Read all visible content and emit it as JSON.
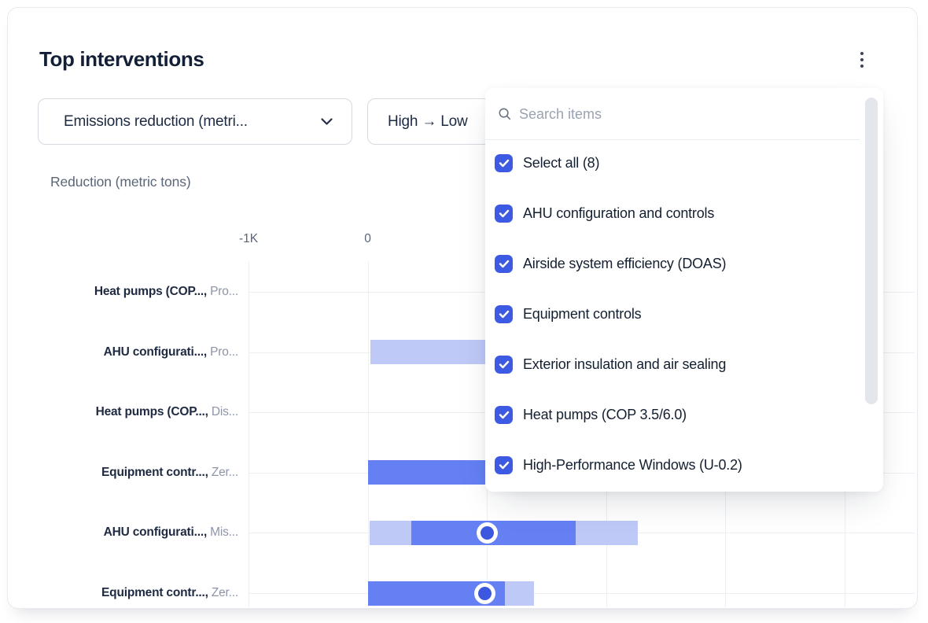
{
  "header": {
    "title": "Top interventions"
  },
  "filters": {
    "metric_dropdown": {
      "value": "Emissions reduction (metri..."
    },
    "sort_dropdown": {
      "value": "High → Low"
    }
  },
  "dropdown_panel": {
    "search_placeholder": "Search items",
    "items": [
      {
        "label": "Select all (8)",
        "checked": true
      },
      {
        "label": "AHU configuration and controls",
        "checked": true
      },
      {
        "label": "Airside system efficiency (DOAS)",
        "checked": true
      },
      {
        "label": "Equipment controls",
        "checked": true
      },
      {
        "label": "Exterior insulation and air sealing",
        "checked": true
      },
      {
        "label": "Heat pumps (COP 3.5/6.0)",
        "checked": true
      },
      {
        "label": "High-Performance Windows (U-0.2)",
        "checked": true
      }
    ]
  },
  "chart_data": {
    "type": "bar",
    "orientation": "horizontal",
    "title": "Reduction (metric tons)",
    "x_axis": {
      "ticks": [
        {
          "label": "-1K",
          "value": -1000
        },
        {
          "label": "0",
          "value": 0
        }
      ],
      "gridline_values": [
        -1000,
        0,
        1000,
        2000,
        3000,
        4000
      ],
      "grid": true
    },
    "rows": [
      {
        "label_primary": "Heat pumps (COP...,",
        "label_secondary": "Pro...",
        "segments": [],
        "marker": null
      },
      {
        "label_primary": "AHU configurati...,",
        "label_secondary": "Pro...",
        "segments": [
          {
            "band": "light",
            "from": 20,
            "to": 1930
          }
        ],
        "marker": null
      },
      {
        "label_primary": "Heat pumps (COP...,",
        "label_secondary": "Dis...",
        "segments": [],
        "marker": null
      },
      {
        "label_primary": "Equipment contr...,",
        "label_secondary": "Zer...",
        "segments": [
          {
            "band": "dark",
            "from": 0,
            "to": 1930
          }
        ],
        "marker": null
      },
      {
        "label_primary": "AHU configurati...,",
        "label_secondary": "Mis...",
        "segments": [
          {
            "band": "light",
            "from": 15,
            "to": 365
          },
          {
            "band": "dark",
            "from": 365,
            "to": 1745
          },
          {
            "band": "light",
            "from": 1745,
            "to": 2265
          }
        ],
        "marker": 1000
      },
      {
        "label_primary": "Equipment contr...,",
        "label_secondary": "Zer...",
        "segments": [
          {
            "band": "dark",
            "from": 0,
            "to": 1150
          },
          {
            "band": "light",
            "from": 1150,
            "to": 1395
          }
        ],
        "marker": 985
      }
    ]
  },
  "colors": {
    "accent_checkbox": "#3E5AE3",
    "bar_dark": "#6480F3",
    "bar_light": "#BFC9F8",
    "marker_fill": "#3B58DE",
    "gridline": "#EDEFF2",
    "text_dark": "#121F36",
    "text_secondary": "#8C95A8",
    "axis_text": "#5B6677"
  }
}
